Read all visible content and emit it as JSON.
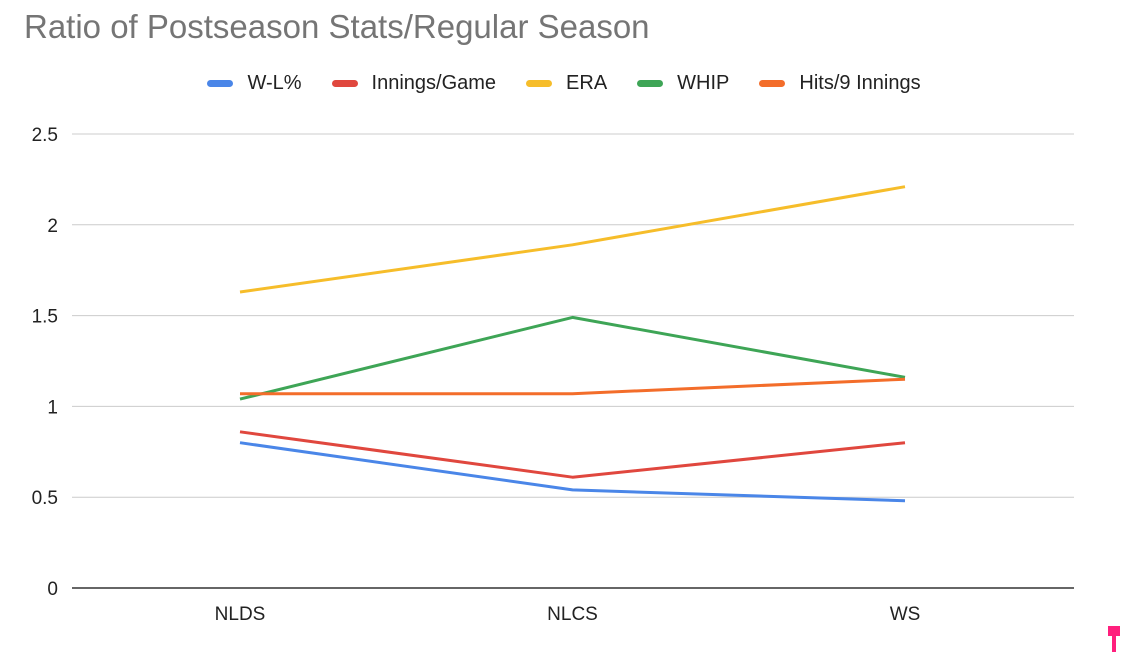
{
  "chart_data": {
    "type": "line",
    "title": "Ratio of Postseason Stats/Regular Season",
    "xlabel": "",
    "ylabel": "",
    "categories": [
      "NLDS",
      "NLCS",
      "WS"
    ],
    "ylim": [
      0,
      2.5
    ],
    "yticks": [
      "0",
      "0.5",
      "1",
      "1.5",
      "2",
      "2.5"
    ],
    "grid": true,
    "legend_position": "top",
    "series": [
      {
        "name": "W-L%",
        "color": "#4a86e8",
        "values": [
          0.8,
          0.54,
          0.48
        ]
      },
      {
        "name": "Innings/Game",
        "color": "#e0473e",
        "values": [
          0.86,
          0.61,
          0.8
        ]
      },
      {
        "name": "ERA",
        "color": "#f6bd2a",
        "values": [
          1.63,
          1.89,
          2.21
        ]
      },
      {
        "name": "WHIP",
        "color": "#3ea556",
        "values": [
          1.04,
          1.49,
          1.16
        ]
      },
      {
        "name": "Hits/9 Innings",
        "color": "#f36d2a",
        "values": [
          1.07,
          1.07,
          1.15
        ]
      }
    ]
  }
}
